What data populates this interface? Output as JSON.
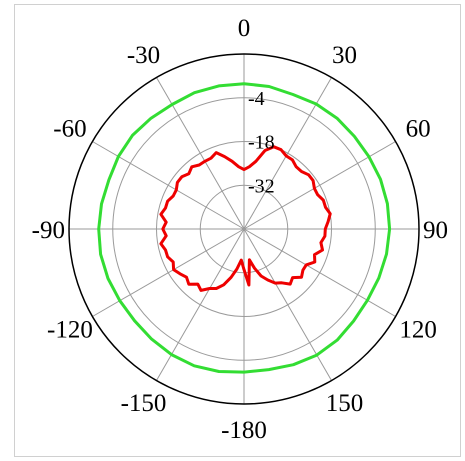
{
  "chart_data": {
    "type": "polar-line",
    "angle_ticks": [
      "0",
      "30",
      "60",
      "90",
      "120",
      "150",
      "-180",
      "-150",
      "-120",
      "-90",
      "-60",
      "-30"
    ],
    "angle_tick_degrees": [
      0,
      30,
      60,
      90,
      120,
      150,
      180,
      210,
      240,
      270,
      300,
      330
    ],
    "radial_ticks": [
      {
        "label": "-4",
        "value": -4
      },
      {
        "label": "-18",
        "value": -18
      },
      {
        "label": "-32",
        "value": -32
      }
    ],
    "r_range": [
      -46,
      10
    ],
    "grid": true,
    "colors": {
      "series_green": "#33dd33",
      "series_red": "#ee0000",
      "grid": "#9a9a9a",
      "outer": "#000000"
    },
    "series": [
      {
        "color": "#33dd33",
        "theta": [
          0,
          10,
          20,
          30,
          40,
          50,
          60,
          70,
          80,
          90,
          100,
          110,
          120,
          130,
          140,
          150,
          160,
          170,
          180,
          190,
          200,
          210,
          220,
          230,
          240,
          250,
          260,
          270,
          280,
          290,
          300,
          310,
          320,
          330,
          340,
          350
        ],
        "r": [
          0.5,
          0.3,
          -0.2,
          0.2,
          0.3,
          0.1,
          0.2,
          0.5,
          0.6,
          0.6,
          0.3,
          -0.1,
          -0.4,
          -0.2,
          0.4,
          0.6,
          0.2,
          -0.3,
          -0.2,
          0.3,
          0.6,
          0.4,
          0.0,
          -0.3,
          -0.1,
          0.3,
          0.6,
          0.5,
          0.3,
          0.0,
          0.4,
          0.6,
          0.3,
          0.0,
          0.4,
          0.5
        ]
      },
      {
        "color": "#ee0000",
        "theta": [
          0,
          5,
          10,
          15,
          20,
          25,
          30,
          35,
          40,
          45,
          50,
          55,
          60,
          65,
          70,
          75,
          80,
          85,
          90,
          95,
          100,
          105,
          110,
          115,
          120,
          125,
          130,
          135,
          140,
          145,
          150,
          155,
          160,
          165,
          170,
          175,
          180,
          185,
          190,
          195,
          200,
          205,
          210,
          215,
          220,
          225,
          230,
          235,
          240,
          245,
          250,
          255,
          260,
          265,
          270,
          275,
          280,
          285,
          290,
          295,
          300,
          305,
          310,
          315,
          320,
          325,
          330,
          335,
          340,
          345,
          350,
          355
        ],
        "r": [
          -27,
          -26,
          -24,
          -20,
          -18,
          -18,
          -19,
          -19,
          -20,
          -20,
          -19,
          -19,
          -20,
          -20,
          -19,
          -19,
          -18,
          -19,
          -20,
          -20,
          -21,
          -20,
          -22,
          -21,
          -23,
          -23,
          -22,
          -24,
          -23,
          -25,
          -26,
          -28,
          -30,
          -33,
          -36,
          -28,
          -33,
          -36,
          -33,
          -30,
          -27,
          -25,
          -24,
          -22,
          -23,
          -21,
          -22,
          -21,
          -20,
          -21,
          -20,
          -20,
          -19,
          -21,
          -20,
          -21,
          -19,
          -20,
          -20,
          -21,
          -21,
          -20,
          -20,
          -21,
          -20,
          -21,
          -21,
          -21,
          -20,
          -22,
          -24,
          -26
        ]
      }
    ]
  }
}
